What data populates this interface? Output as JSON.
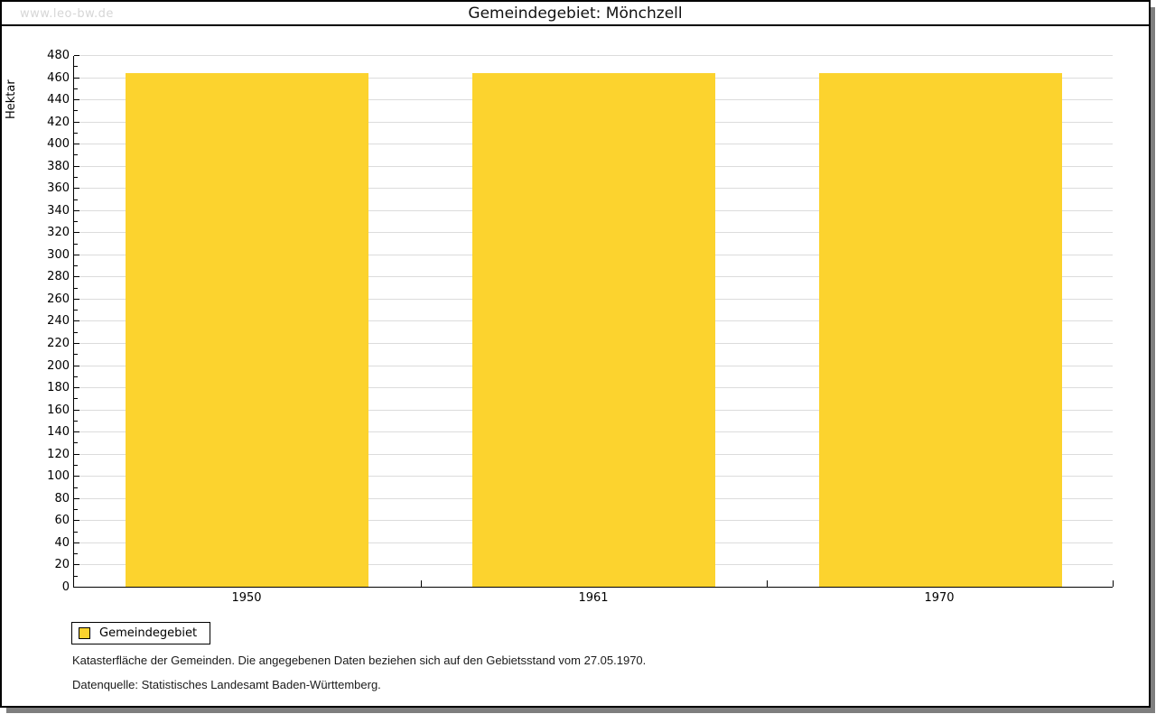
{
  "watermark": "www.leo-bw.de",
  "title": "Gemeindegebiet: Mönchzell",
  "legend": {
    "label": "Gemeindegebiet"
  },
  "footer": {
    "line1": "Katasterfläche der Gemeinden. Die angegebenen Daten beziehen sich auf den Gebietsstand vom 27.05.1970.",
    "line2": "Datenquelle: Statistisches Landesamt Baden-Württemberg."
  },
  "chart_data": {
    "type": "bar",
    "title": "Gemeindegebiet: Mönchzell",
    "categories": [
      "1950",
      "1961",
      "1970"
    ],
    "series": [
      {
        "name": "Gemeindegebiet",
        "values": [
          464,
          464,
          464
        ]
      }
    ],
    "xlabel": "",
    "ylabel": "Hektar",
    "ylim": [
      0,
      480
    ],
    "yticks": [
      0,
      20,
      40,
      60,
      80,
      100,
      120,
      140,
      160,
      180,
      200,
      220,
      240,
      260,
      280,
      300,
      320,
      340,
      360,
      380,
      400,
      420,
      440,
      460,
      480
    ],
    "minor_tick_step": 10,
    "grid": true,
    "legend_position": "bottom-left",
    "bar_color": "#FCD32E",
    "gridline_color": "#DCDCDC",
    "axis_color": "#000000",
    "watermark_color": "#D6D6D6"
  }
}
